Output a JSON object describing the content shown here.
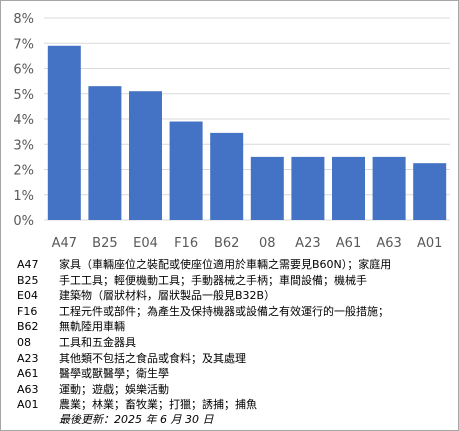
{
  "chart_data": {
    "type": "bar",
    "categories": [
      "A47",
      "B25",
      "E04",
      "F16",
      "B62",
      "08",
      "A23",
      "A61",
      "A63",
      "A01"
    ],
    "values": [
      6.9,
      5.3,
      5.1,
      3.9,
      3.45,
      2.5,
      2.5,
      2.5,
      2.5,
      2.25
    ],
    "ylim": [
      0,
      8
    ],
    "yticks": [
      "0%",
      "1%",
      "2%",
      "3%",
      "4%",
      "5%",
      "6%",
      "7%",
      "8%"
    ],
    "title": "",
    "xlabel": "",
    "ylabel": "",
    "grid": true,
    "bar_color": "#4472c4",
    "grid_color": "#d9d9d9"
  },
  "legend": [
    {
      "code": "A47",
      "desc": "家具（車輛座位之裝配或使座位適用於車輛之需要見B60N）；家庭用"
    },
    {
      "code": "B25",
      "desc": "手工工具；輕便機動工具；手動器械之手柄；車間設備；機械手"
    },
    {
      "code": "E04",
      "desc": "建築物（層狀材料，層狀製品一般見B32B）"
    },
    {
      "code": "F16",
      "desc": "工程元件或部件；為產生及保持機器或設備之有效運行的一般措施；"
    },
    {
      "code": "B62",
      "desc": "無軌陸用車輛"
    },
    {
      "code": "08",
      "desc": "工具和五金器具"
    },
    {
      "code": "A23",
      "desc": "其他類不包括之食品或食料；及其處理"
    },
    {
      "code": "A61",
      "desc": "醫學或獸醫學；衛生學"
    },
    {
      "code": "A63",
      "desc": "運動；遊戲；娛樂活動"
    },
    {
      "code": "A01",
      "desc": "農業；林業；畜牧業；打獵；誘捕；捕魚"
    }
  ],
  "footer": {
    "updated": "最後更新：2025 年 6 月 30 日"
  }
}
